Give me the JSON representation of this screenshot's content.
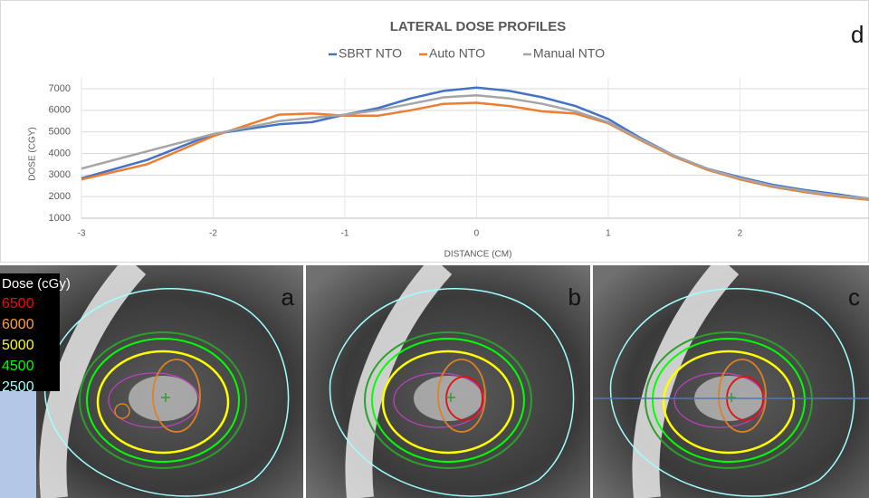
{
  "chart_data": {
    "type": "line",
    "title": "LATERAL DOSE PROFILES",
    "x_label": "DISTANCE (CM)",
    "y_label": "DOSE (CGY)",
    "x": [
      -3,
      -2.5,
      -2,
      -1.5,
      -1.25,
      -1,
      -0.75,
      -0.5,
      -0.25,
      0,
      0.25,
      0.5,
      0.75,
      1,
      1.25,
      1.5,
      1.75,
      2,
      2.25,
      2.5,
      2.75,
      2.98
    ],
    "series": [
      {
        "name": "SBRT NTO",
        "color": "#4472c4",
        "values": [
          2850,
          3700,
          4900,
          5350,
          5450,
          5800,
          6100,
          6550,
          6900,
          7050,
          6900,
          6600,
          6200,
          5600,
          4700,
          3900,
          3300,
          2900,
          2550,
          2300,
          2100,
          1900
        ]
      },
      {
        "name": "Auto NTO",
        "color": "#ed7d31",
        "values": [
          2800,
          3500,
          4800,
          5800,
          5850,
          5750,
          5750,
          6000,
          6300,
          6350,
          6200,
          5950,
          5850,
          5400,
          4600,
          3850,
          3250,
          2800,
          2450,
          2200,
          2000,
          1850
        ]
      },
      {
        "name": "Manual NTO",
        "color": "#a5a5a5",
        "values": [
          3300,
          4100,
          4900,
          5500,
          5650,
          5800,
          6000,
          6300,
          6600,
          6700,
          6550,
          6300,
          5950,
          5450,
          4650,
          3900,
          3300,
          2850,
          2500,
          2250,
          2050,
          1900
        ]
      }
    ],
    "xlim": [
      -3,
      2.98
    ],
    "xticks": [
      -3,
      -2,
      -1,
      0,
      1,
      2
    ],
    "ylim": [
      1000,
      7000
    ],
    "yticks": [
      1000,
      2000,
      3000,
      4000,
      5000,
      6000,
      7000
    ],
    "grid": true,
    "legend": "top"
  },
  "panel_labels": [
    "a",
    "b",
    "c",
    "d"
  ],
  "dose_legend": {
    "title": "Dose (cGy)",
    "levels": [
      {
        "value": 6500,
        "color": "#ff0000"
      },
      {
        "value": 6000,
        "color": "#ffa040"
      },
      {
        "value": 5000,
        "color": "#ffff00"
      },
      {
        "value": 4500,
        "color": "#00ff00"
      },
      {
        "value": 2500,
        "color": "#a0ffff"
      }
    ]
  }
}
